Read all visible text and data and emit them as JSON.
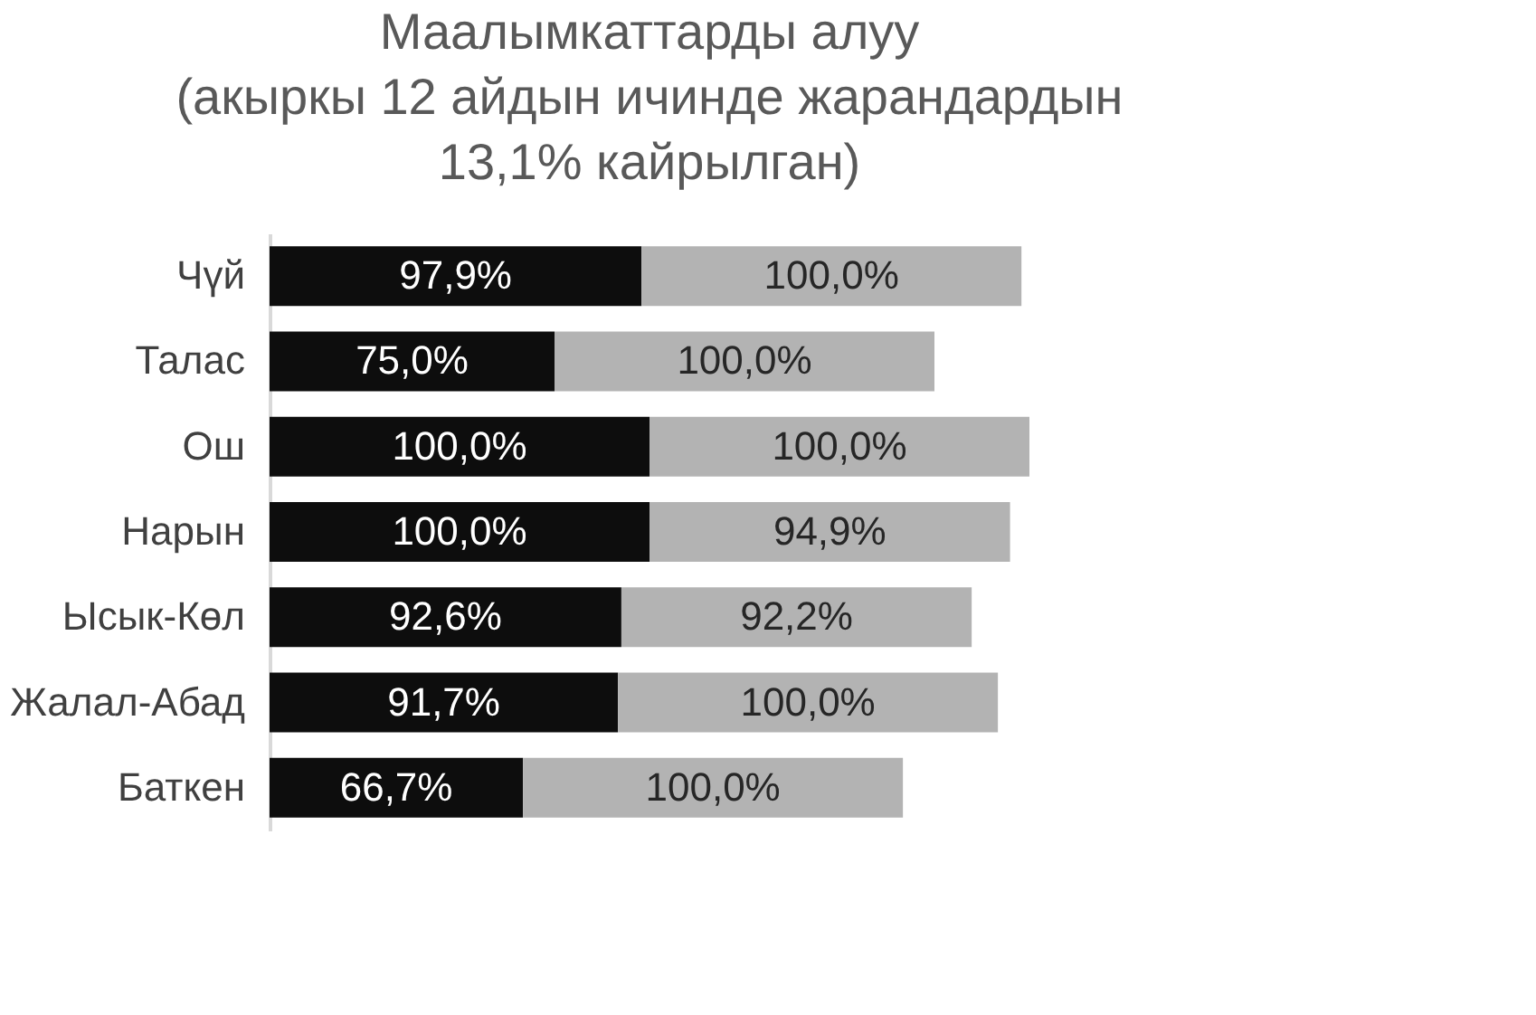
{
  "chart_data": {
    "type": "bar",
    "orientation": "horizontal",
    "stacked": true,
    "grid": false,
    "title": [
      "Маалымкаттарды алуу",
      "(акыркы 12 айдын ичинде жарандардын",
      "13,1% кайрылган)"
    ],
    "categories": [
      "Чүй",
      "Талас",
      "Ош",
      "Нарын",
      "Ысык-Көл",
      "Жалал-Абад",
      "Баткен"
    ],
    "series": [
      {
        "color": "#0d0d0d",
        "values": [
          97.9,
          75.0,
          100.0,
          100.0,
          92.6,
          91.7,
          66.7
        ],
        "value_labels": [
          "97,9%",
          "75,0%",
          "100,0%",
          "100,0%",
          "92,6%",
          "91,7%",
          "66,7%"
        ]
      },
      {
        "color": "#b3b3b3",
        "values": [
          100.0,
          100.0,
          100.0,
          94.9,
          92.2,
          100.0,
          100.0
        ],
        "value_labels": [
          "100,0%",
          "100,0%",
          "100,0%",
          "94,9%",
          "92,2%",
          "100,0%",
          "100,0%"
        ]
      }
    ]
  }
}
